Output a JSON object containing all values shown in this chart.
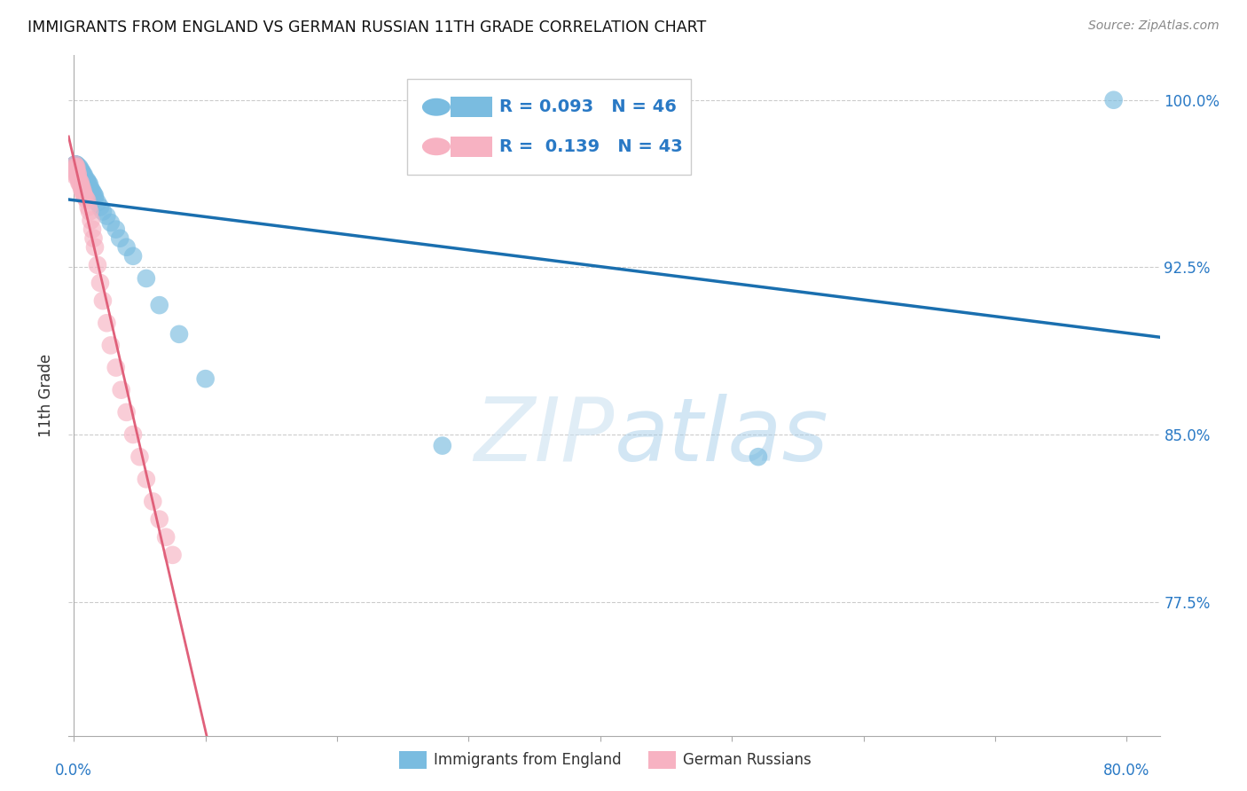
{
  "title": "IMMIGRANTS FROM ENGLAND VS GERMAN RUSSIAN 11TH GRADE CORRELATION CHART",
  "source": "Source: ZipAtlas.com",
  "ylabel": "11th Grade",
  "ytick_labels": [
    "100.0%",
    "92.5%",
    "85.0%",
    "77.5%"
  ],
  "ytick_values": [
    1.0,
    0.925,
    0.85,
    0.775
  ],
  "ymin": 0.715,
  "ymax": 1.02,
  "xmin": -0.004,
  "xmax": 0.825,
  "legend_R1": "0.093",
  "legend_N1": "46",
  "legend_R2": "0.139",
  "legend_N2": "43",
  "color_blue": "#7abce0",
  "color_pink": "#f7b2c2",
  "color_blue_line": "#1a6faf",
  "color_pink_line": "#e0607a",
  "blue_scatter_x": [
    0.001,
    0.001,
    0.001,
    0.001,
    0.002,
    0.002,
    0.002,
    0.003,
    0.003,
    0.004,
    0.004,
    0.004,
    0.005,
    0.005,
    0.006,
    0.006,
    0.007,
    0.007,
    0.008,
    0.008,
    0.009,
    0.01,
    0.01,
    0.011,
    0.012,
    0.013,
    0.014,
    0.015,
    0.016,
    0.016,
    0.018,
    0.02,
    0.022,
    0.025,
    0.028,
    0.032,
    0.035,
    0.04,
    0.045,
    0.055,
    0.065,
    0.08,
    0.1,
    0.28,
    0.52,
    0.79
  ],
  "blue_scatter_y": [
    0.971,
    0.971,
    0.971,
    0.971,
    0.971,
    0.971,
    0.97,
    0.969,
    0.968,
    0.97,
    0.969,
    0.968,
    0.969,
    0.968,
    0.968,
    0.967,
    0.967,
    0.966,
    0.966,
    0.965,
    0.964,
    0.964,
    0.963,
    0.963,
    0.962,
    0.96,
    0.959,
    0.958,
    0.957,
    0.956,
    0.954,
    0.952,
    0.95,
    0.948,
    0.945,
    0.942,
    0.938,
    0.934,
    0.93,
    0.92,
    0.908,
    0.895,
    0.875,
    0.845,
    0.84,
    1.0
  ],
  "pink_scatter_x": [
    0.001,
    0.001,
    0.001,
    0.001,
    0.001,
    0.001,
    0.002,
    0.002,
    0.002,
    0.003,
    0.003,
    0.004,
    0.004,
    0.005,
    0.005,
    0.006,
    0.006,
    0.007,
    0.007,
    0.008,
    0.009,
    0.01,
    0.011,
    0.012,
    0.013,
    0.014,
    0.015,
    0.016,
    0.018,
    0.02,
    0.022,
    0.025,
    0.028,
    0.032,
    0.036,
    0.04,
    0.045,
    0.05,
    0.055,
    0.06,
    0.065,
    0.07,
    0.075
  ],
  "pink_scatter_y": [
    0.971,
    0.97,
    0.969,
    0.968,
    0.967,
    0.966,
    0.97,
    0.969,
    0.968,
    0.967,
    0.966,
    0.964,
    0.963,
    0.963,
    0.962,
    0.961,
    0.96,
    0.959,
    0.958,
    0.957,
    0.956,
    0.955,
    0.952,
    0.95,
    0.946,
    0.942,
    0.938,
    0.934,
    0.926,
    0.918,
    0.91,
    0.9,
    0.89,
    0.88,
    0.87,
    0.86,
    0.85,
    0.84,
    0.83,
    0.82,
    0.812,
    0.804,
    0.796
  ]
}
